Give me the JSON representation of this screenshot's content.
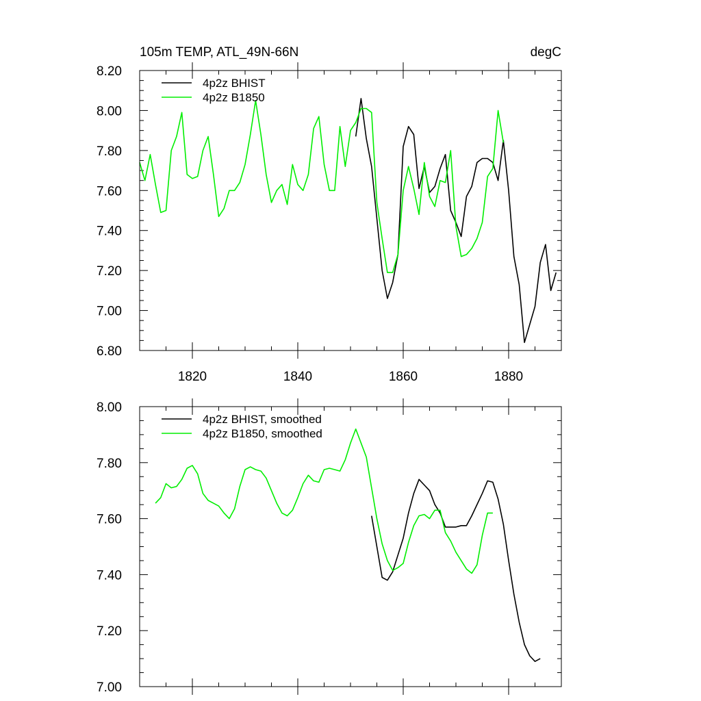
{
  "chart_data": [
    {
      "type": "line",
      "title": "105m TEMP, ATL_49N-66N",
      "units": "degC",
      "xlim": [
        1810,
        1890
      ],
      "ylim": [
        6.8,
        8.2
      ],
      "x_ticks": [
        1820,
        1840,
        1860,
        1880
      ],
      "y_ticks": [
        6.8,
        7.0,
        7.2,
        7.4,
        7.6,
        7.8,
        8.0,
        8.2
      ],
      "y_tick_labels": [
        "6.80",
        "7.00",
        "7.20",
        "7.40",
        "7.60",
        "7.80",
        "8.00",
        "8.20"
      ],
      "legend_position": "top-left",
      "series": [
        {
          "name": "4p2z BHIST",
          "color": "#000000",
          "x": [
            1851,
            1852,
            1853,
            1854,
            1855,
            1856,
            1857,
            1858,
            1859,
            1860,
            1861,
            1862,
            1863,
            1864,
            1865,
            1866,
            1867,
            1868,
            1869,
            1870,
            1871,
            1872,
            1873,
            1874,
            1875,
            1876,
            1877,
            1878,
            1879,
            1880,
            1881,
            1882,
            1883,
            1884,
            1885,
            1886,
            1887,
            1888,
            1889
          ],
          "y": [
            7.87,
            8.06,
            7.86,
            7.72,
            7.46,
            7.2,
            7.06,
            7.14,
            7.28,
            7.82,
            7.92,
            7.88,
            7.61,
            7.72,
            7.59,
            7.62,
            7.71,
            7.78,
            7.5,
            7.44,
            7.37,
            7.57,
            7.62,
            7.74,
            7.76,
            7.76,
            7.74,
            7.65,
            7.85,
            7.6,
            7.27,
            7.13,
            6.84,
            6.93,
            7.02,
            7.24,
            7.33,
            7.1,
            7.19
          ]
        },
        {
          "name": "4p2z B1850",
          "color": "#00ee00",
          "x": [
            1810,
            1811,
            1812,
            1813,
            1814,
            1815,
            1816,
            1817,
            1818,
            1819,
            1820,
            1821,
            1822,
            1823,
            1824,
            1825,
            1826,
            1827,
            1828,
            1829,
            1830,
            1831,
            1832,
            1833,
            1834,
            1835,
            1836,
            1837,
            1838,
            1839,
            1840,
            1841,
            1842,
            1843,
            1844,
            1845,
            1846,
            1847,
            1848,
            1849,
            1850,
            1851,
            1852,
            1853,
            1854,
            1855,
            1856,
            1857,
            1858,
            1859,
            1860,
            1861,
            1862,
            1863,
            1864,
            1865,
            1866,
            1867,
            1868,
            1869,
            1870,
            1871,
            1872,
            1873,
            1874,
            1875,
            1876,
            1877,
            1878,
            1879
          ],
          "y": [
            7.74,
            7.65,
            7.78,
            7.63,
            7.49,
            7.5,
            7.8,
            7.87,
            7.99,
            7.68,
            7.66,
            7.67,
            7.8,
            7.87,
            7.68,
            7.47,
            7.51,
            7.6,
            7.6,
            7.64,
            7.73,
            7.88,
            8.05,
            7.88,
            7.68,
            7.54,
            7.6,
            7.63,
            7.53,
            7.73,
            7.63,
            7.6,
            7.68,
            7.91,
            7.97,
            7.73,
            7.6,
            7.6,
            7.92,
            7.72,
            7.9,
            7.94,
            8.01,
            8.01,
            7.99,
            7.54,
            7.36,
            7.19,
            7.19,
            7.28,
            7.6,
            7.72,
            7.61,
            7.48,
            7.74,
            7.57,
            7.52,
            7.65,
            7.64,
            7.8,
            7.42,
            7.27,
            7.28,
            7.31,
            7.36,
            7.44,
            7.67,
            7.71,
            8.0,
            7.84
          ]
        }
      ]
    },
    {
      "type": "line",
      "xlim": [
        1810,
        1890
      ],
      "ylim": [
        7.0,
        8.0
      ],
      "y_ticks": [
        7.0,
        7.2,
        7.4,
        7.6,
        7.8,
        8.0
      ],
      "y_tick_labels": [
        "7.00",
        "7.20",
        "7.40",
        "7.60",
        "7.80",
        "8.00"
      ],
      "legend_position": "top-left",
      "series": [
        {
          "name": "4p2z BHIST, smoothed",
          "color": "#000000",
          "x": [
            1854,
            1855,
            1856,
            1857,
            1858,
            1859,
            1860,
            1861,
            1862,
            1863,
            1864,
            1865,
            1866,
            1867,
            1868,
            1869,
            1870,
            1871,
            1872,
            1873,
            1874,
            1875,
            1876,
            1877,
            1878,
            1879,
            1880,
            1881,
            1882,
            1883,
            1884,
            1885,
            1886
          ],
          "y": [
            7.61,
            7.5,
            7.39,
            7.38,
            7.41,
            7.47,
            7.53,
            7.62,
            7.69,
            7.74,
            7.72,
            7.7,
            7.65,
            7.62,
            7.57,
            7.57,
            7.57,
            7.575,
            7.575,
            7.61,
            7.65,
            7.69,
            7.735,
            7.73,
            7.67,
            7.58,
            7.45,
            7.33,
            7.23,
            7.15,
            7.11,
            7.09,
            7.1
          ]
        },
        {
          "name": "4p2z B1850, smoothed",
          "color": "#00ee00",
          "x": [
            1813,
            1814,
            1815,
            1816,
            1817,
            1818,
            1819,
            1820,
            1821,
            1822,
            1823,
            1824,
            1825,
            1826,
            1827,
            1828,
            1829,
            1830,
            1831,
            1832,
            1833,
            1834,
            1835,
            1836,
            1837,
            1838,
            1839,
            1840,
            1841,
            1842,
            1843,
            1844,
            1845,
            1846,
            1847,
            1848,
            1849,
            1850,
            1851,
            1852,
            1853,
            1854,
            1855,
            1856,
            1857,
            1858,
            1859,
            1860,
            1861,
            1862,
            1863,
            1864,
            1865,
            1866,
            1867,
            1868,
            1869,
            1870,
            1871,
            1872,
            1873,
            1874,
            1875,
            1876,
            1877
          ],
          "y": [
            7.655,
            7.675,
            7.725,
            7.71,
            7.715,
            7.74,
            7.78,
            7.79,
            7.76,
            7.69,
            7.665,
            7.655,
            7.645,
            7.62,
            7.6,
            7.635,
            7.715,
            7.775,
            7.785,
            7.775,
            7.77,
            7.745,
            7.7,
            7.655,
            7.62,
            7.61,
            7.63,
            7.675,
            7.725,
            7.755,
            7.735,
            7.73,
            7.775,
            7.78,
            7.775,
            7.77,
            7.81,
            7.87,
            7.92,
            7.87,
            7.82,
            7.71,
            7.6,
            7.51,
            7.45,
            7.415,
            7.425,
            7.44,
            7.515,
            7.575,
            7.61,
            7.615,
            7.6,
            7.63,
            7.63,
            7.55,
            7.52,
            7.48,
            7.45,
            7.42,
            7.405,
            7.435,
            7.54,
            7.62,
            7.62
          ]
        }
      ]
    }
  ]
}
